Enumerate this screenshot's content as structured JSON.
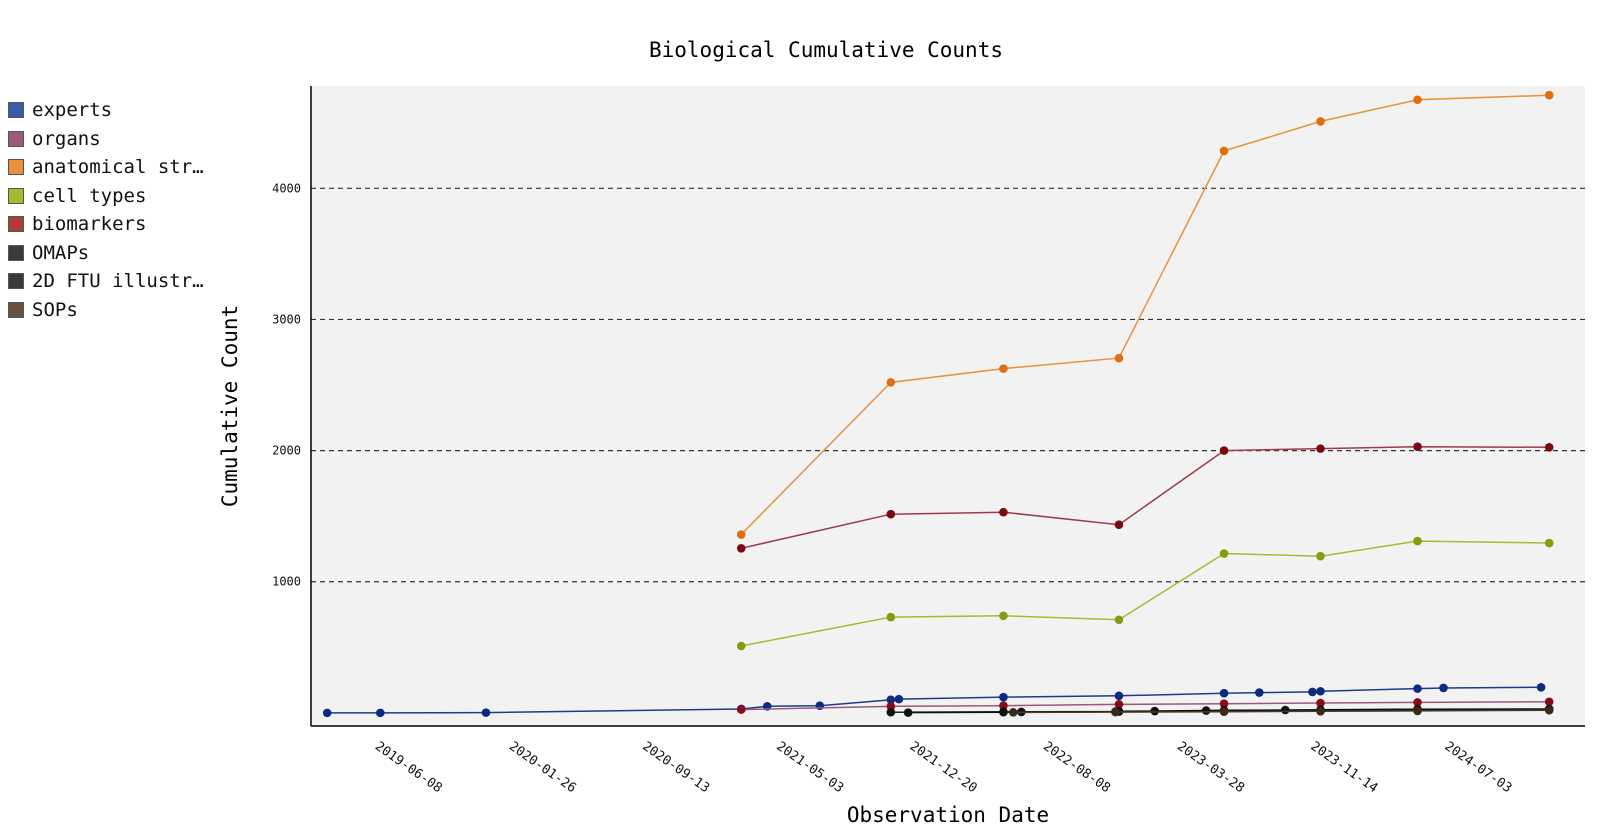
{
  "chart_data": {
    "type": "line",
    "title": "Biological Cumulative Counts",
    "xlabel": "Observation Date",
    "ylabel": "Cumulative Count",
    "x_type": "date",
    "xlim": [
      "2019-02-01",
      "2025-02-15"
    ],
    "ylim": [
      -100,
      4780
    ],
    "x_ticks": [
      "2019-06-08",
      "2020-01-26",
      "2020-09-13",
      "2021-05-03",
      "2021-12-20",
      "2022-08-08",
      "2023-03-28",
      "2023-11-14",
      "2024-07-03"
    ],
    "y_ticks": [
      1000,
      2000,
      3000,
      4000
    ],
    "grid": "horizontal dashed",
    "legend_position": "left",
    "series": [
      {
        "name": "experts",
        "color": "#3a5ba8",
        "line_color": "#1e3a8a",
        "marker_color": "#0b2a80",
        "x": [
          "2019-03-01",
          "2019-06-01",
          "2019-12-01",
          "2021-02-15",
          "2021-04-01",
          "2021-07-01",
          "2021-11-01",
          "2021-11-15",
          "2022-05-15",
          "2022-12-01",
          "2023-06-01",
          "2023-08-01",
          "2023-11-01",
          "2023-11-15",
          "2024-05-01",
          "2024-06-15",
          "2024-12-01"
        ],
        "values": [
          0,
          0,
          2,
          30,
          50,
          55,
          100,
          105,
          120,
          130,
          150,
          155,
          160,
          165,
          185,
          190,
          195
        ]
      },
      {
        "name": "organs",
        "color": "#9a5a78",
        "line_color": "#9a5a78",
        "marker_color": "#8b0a1a",
        "x": [
          "2021-02-15",
          "2021-11-01",
          "2022-05-15",
          "2022-12-01",
          "2023-06-01",
          "2023-11-15",
          "2024-05-01",
          "2024-12-15"
        ],
        "values": [
          25,
          50,
          55,
          65,
          70,
          75,
          80,
          85
        ]
      },
      {
        "name": "anatomical str…",
        "color": "#e8913a",
        "line_color": "#e8913a",
        "marker_color": "#e06e10",
        "x": [
          "2021-02-15",
          "2021-11-01",
          "2022-05-15",
          "2022-12-01",
          "2023-06-01",
          "2023-11-15",
          "2024-05-01",
          "2024-12-15"
        ],
        "values": [
          1360,
          2520,
          2625,
          2705,
          4285,
          4510,
          4675,
          4710
        ]
      },
      {
        "name": "cell types",
        "color": "#a8b832",
        "line_color": "#a8b832",
        "marker_color": "#8a9a10",
        "x": [
          "2021-02-15",
          "2021-11-01",
          "2022-05-15",
          "2022-12-01",
          "2023-06-01",
          "2023-11-15",
          "2024-05-01",
          "2024-12-15"
        ],
        "values": [
          510,
          730,
          740,
          710,
          1215,
          1195,
          1310,
          1295
        ]
      },
      {
        "name": "biomarkers",
        "color": "#b23a3a",
        "line_color": "#a03a4a",
        "marker_color": "#7a0a12",
        "x": [
          "2021-02-15",
          "2021-11-01",
          "2022-05-15",
          "2022-12-01",
          "2023-06-01",
          "2023-11-15",
          "2024-05-01",
          "2024-12-15"
        ],
        "values": [
          1255,
          1515,
          1530,
          1435,
          2000,
          2015,
          2030,
          2025
        ]
      },
      {
        "name": "OMAPs",
        "color": "#3a3a3a",
        "line_color": "#222222",
        "marker_color": "#111111",
        "x": [
          "2021-11-01",
          "2022-05-15",
          "2022-12-01",
          "2023-06-01",
          "2023-11-15",
          "2024-05-01",
          "2024-12-15"
        ],
        "values": [
          5,
          8,
          10,
          14,
          16,
          22,
          25
        ]
      },
      {
        "name": "2D FTU illustr…",
        "color": "#3a3a3a",
        "line_color": "#111111",
        "marker_color": "#111111",
        "x": [
          "2021-12-01",
          "2022-05-15",
          "2022-06-15",
          "2022-11-25",
          "2022-12-01",
          "2023-02-01",
          "2023-05-01",
          "2023-06-01",
          "2023-09-15",
          "2023-11-15",
          "2024-05-01",
          "2024-12-15"
        ],
        "values": [
          2,
          5,
          7,
          10,
          12,
          14,
          18,
          20,
          22,
          24,
          28,
          30
        ]
      },
      {
        "name": "SOPs",
        "color": "#6b5240",
        "line_color": "#4a3a2a",
        "marker_color": "#3a2a1a",
        "x": [
          "2022-06-01",
          "2022-11-25",
          "2023-06-01",
          "2023-11-15",
          "2024-05-01",
          "2024-12-15"
        ],
        "values": [
          4,
          6,
          9,
          12,
          15,
          20
        ]
      }
    ]
  }
}
